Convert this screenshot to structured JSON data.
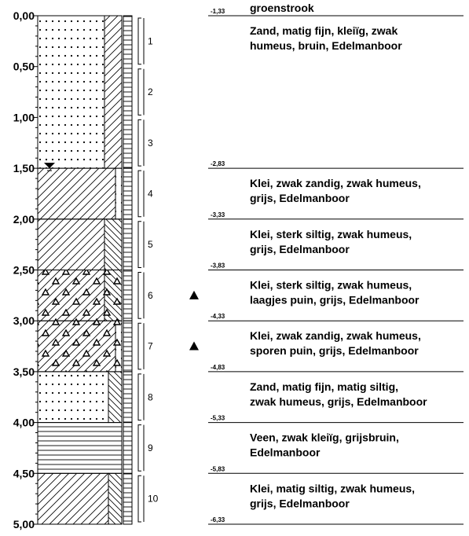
{
  "depth_labels": [
    "0,00",
    "0,50",
    "1,00",
    "1,50",
    "2,00",
    "2,50",
    "3,00",
    "3,50",
    "4,00",
    "4,50",
    "5,00"
  ],
  "samples": [
    "1",
    "2",
    "3",
    "4",
    "5",
    "6",
    "7",
    "8",
    "9",
    "10"
  ],
  "top_label": "groenstrook",
  "layers": [
    {
      "level": "-1,33",
      "description": [
        "Zand, matig fijn, kleiïg, zwak",
        "humeus, bruin, Edelmanboor"
      ]
    },
    {
      "level": "-2,83",
      "description": [
        "Klei, zwak zandig, zwak humeus,",
        "grijs, Edelmanboor"
      ]
    },
    {
      "level": "-3,33",
      "description": [
        "Klei, sterk siltig, zwak humeus,",
        "grijs, Edelmanboor"
      ]
    },
    {
      "level": "-3,83",
      "description": [
        "Klei, sterk siltig, zwak humeus,",
        "laagjes puin, grijs, Edelmanboor"
      ]
    },
    {
      "level": "-4,33",
      "description": [
        "Klei, zwak zandig, zwak humeus,",
        "sporen puin, grijs, Edelmanboor"
      ]
    },
    {
      "level": "-4,83",
      "description": [
        "Zand, matig fijn, matig siltig,",
        "zwak humeus, grijs, Edelmanboor"
      ]
    },
    {
      "level": "-5,33",
      "description": [
        "Veen, zwak kleiïg, grijsbruin,",
        "Edelmanboor"
      ]
    },
    {
      "level": "-5,83",
      "description": [
        "Klei, matig siltig, zwak humeus,",
        "grijs, Edelmanboor"
      ]
    }
  ],
  "bottom_level": "-6,33"
}
